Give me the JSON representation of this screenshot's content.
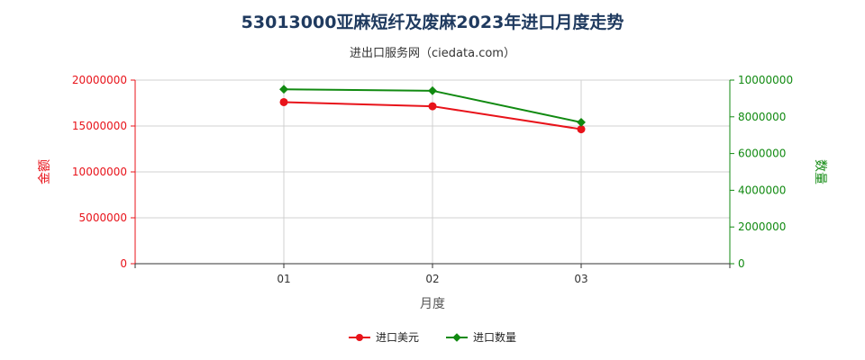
{
  "header": {
    "title": "53013000亚麻短纤及废麻2023年进口月度走势",
    "subtitle": "进出口服务网（ciedata.com）"
  },
  "colors": {
    "amount": "#e8131a",
    "quantity": "#118a11",
    "grid": "#d0d0d0",
    "axis": "#333333"
  },
  "chart_data": {
    "type": "line",
    "title": "53013000亚麻短纤及废麻2023年进口月度走势",
    "subtitle": "进出口服务网（ciedata.com）",
    "xlabel": "月度",
    "ylabel_left": "金额",
    "ylabel_right": "数量",
    "categories": [
      "01",
      "02",
      "03"
    ],
    "y_left": {
      "ylim": [
        0,
        20000000
      ],
      "ticks": [
        "0",
        "5000000",
        "10000000",
        "15000000",
        "20000000"
      ]
    },
    "y_right": {
      "ylim": [
        0,
        10000000
      ],
      "ticks": [
        "0",
        "2000000",
        "4000000",
        "6000000",
        "8000000",
        "10000000"
      ]
    },
    "grid": true,
    "legend_position": "bottom-center",
    "series": [
      {
        "name": "进口美元",
        "axis": "left",
        "values": [
          17600000,
          17150000,
          14650000
        ]
      },
      {
        "name": "进口数量",
        "axis": "right",
        "values": [
          9500000,
          9420000,
          7700000
        ]
      }
    ]
  }
}
